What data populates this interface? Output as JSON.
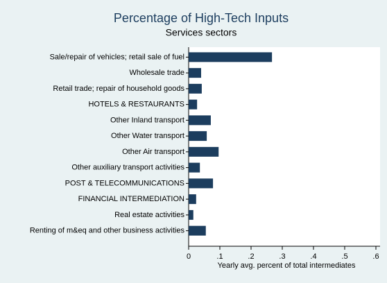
{
  "chart_data": {
    "type": "barh",
    "title": "Percentage of High-Tech Inputs",
    "subtitle": "Services sectors",
    "x_label": "Yearly avg. percent of total intermediates",
    "categories": [
      "Sale/repair of vehicles; retail sale of fuel",
      "Wholesale trade",
      "Retail trade; repair of household goods",
      "HOTELS & RESTAURANTS",
      "Other Inland transport",
      "Other Water transport",
      "Other Air transport",
      "Other auxiliary transport activities",
      "POST & TELECOMMUNICATIONS",
      "FINANCIAL INTERMEDIATION",
      "Real estate activities",
      "Renting of m&eq and other business activities"
    ],
    "values": [
      0.267,
      0.04,
      0.042,
      0.027,
      0.071,
      0.058,
      0.096,
      0.036,
      0.078,
      0.024,
      0.015,
      0.055
    ],
    "color": "#1c3d5e",
    "xlim": [
      0,
      0.6
    ],
    "xticks": [
      0,
      {
        "value": 0.1,
        "label": ".1"
      },
      {
        "value": 0.2,
        "label": ".2"
      },
      {
        "value": 0.3,
        "label": ".3"
      },
      {
        "value": 0.4,
        "label": ".4"
      },
      {
        "value": 0.5,
        "label": ".5"
      },
      {
        "value": 0.6,
        "label": ".6"
      }
    ]
  }
}
